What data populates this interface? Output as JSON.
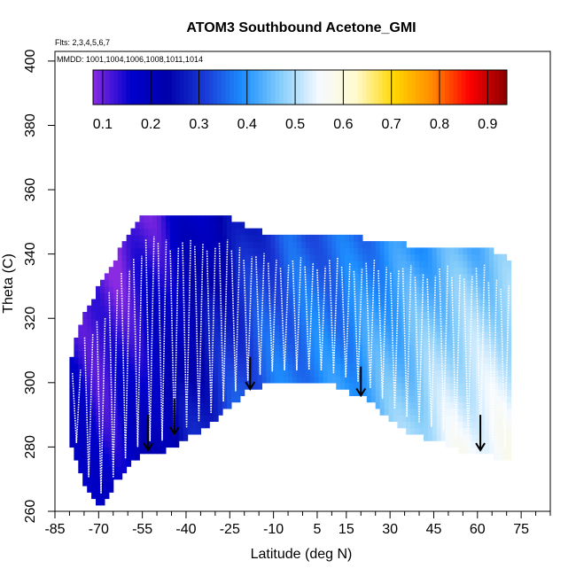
{
  "chart_data": {
    "type": "heatmap",
    "title": "ATOM3 Southbound Acetone_GMI",
    "subtitle_flights": "Flts: 2,3,4,5,6,7",
    "subtitle_dates": "MMDD: 1001,1004,1006,1008,1011,1014",
    "xlabel": "Latitude (deg N)",
    "ylabel": "Theta (C)",
    "xlim": [
      -85,
      85
    ],
    "ylim": [
      260,
      403
    ],
    "x_ticks": [
      -85,
      -70,
      -55,
      -40,
      -25,
      -10,
      5,
      15,
      30,
      45,
      60,
      75
    ],
    "x_tick_labels": [
      "-85",
      "-70",
      "-55",
      "-40",
      "-25",
      "-10",
      "5",
      "15",
      "30",
      "45",
      "60",
      "75"
    ],
    "x_minor_ticks": [
      -80,
      -75,
      -65,
      -60,
      -50,
      -45,
      -35,
      -30,
      -20,
      -15,
      -5,
      0,
      10,
      20,
      25,
      35,
      40,
      50,
      55,
      65,
      70,
      80,
      85
    ],
    "y_ticks": [
      260,
      280,
      300,
      320,
      340,
      360,
      380,
      400
    ],
    "y_tick_labels": [
      "260",
      "280",
      "300",
      "320",
      "340",
      "360",
      "380",
      "400"
    ],
    "colorbar": {
      "range": [
        0.08,
        0.94
      ],
      "ticks": [
        0.1,
        0.2,
        0.3,
        0.4,
        0.5,
        0.6,
        0.7,
        0.8,
        0.9
      ],
      "tick_labels": [
        "0.1",
        "0.2",
        "0.3",
        "0.4",
        "0.5",
        "0.6",
        "0.7",
        "0.8",
        "0.9"
      ],
      "colors": [
        "#8A2BE2",
        "#0000CD",
        "#0000AA",
        "#1A3CD8",
        "#1E90FF",
        "#87CEFA",
        "#F5FAFF",
        "#FFFACD",
        "#FFD700",
        "#FF8C00",
        "#FF0000",
        "#8B0000"
      ]
    },
    "field": {
      "lat": [
        -80,
        -75,
        -70,
        -65,
        -60,
        -55,
        -50,
        -45,
        -40,
        -35,
        -30,
        -25,
        -20,
        -15,
        -10,
        -5,
        0,
        5,
        10,
        15,
        20,
        25,
        30,
        35,
        40,
        45,
        50,
        55,
        60,
        65,
        70
      ],
      "theta_top": [
        308,
        322,
        330,
        338,
        346,
        352,
        352,
        351,
        351,
        351,
        351,
        350,
        348,
        346,
        346,
        345,
        345,
        345,
        345,
        345,
        344,
        344,
        344,
        342,
        342,
        342,
        342,
        342,
        342,
        340,
        338
      ],
      "theta_bottom": [
        281,
        268,
        262,
        270,
        276,
        279,
        279,
        281,
        284,
        286,
        290,
        294,
        298,
        300,
        301,
        301,
        301,
        301,
        300,
        298,
        297,
        293,
        289,
        286,
        284,
        283,
        281,
        279,
        279,
        278,
        276
      ],
      "value_low_theta": [
        0.2,
        0.18,
        0.16,
        0.17,
        0.18,
        0.2,
        0.22,
        0.24,
        0.26,
        0.28,
        0.3,
        0.32,
        0.34,
        0.35,
        0.36,
        0.37,
        0.38,
        0.38,
        0.39,
        0.4,
        0.42,
        0.44,
        0.46,
        0.48,
        0.5,
        0.52,
        0.54,
        0.55,
        0.56,
        0.56,
        0.56
      ],
      "value_high_theta": [
        0.14,
        0.12,
        0.1,
        0.09,
        0.1,
        0.11,
        0.12,
        0.15,
        0.18,
        0.2,
        0.22,
        0.24,
        0.27,
        0.3,
        0.32,
        0.34,
        0.34,
        0.35,
        0.35,
        0.36,
        0.37,
        0.38,
        0.39,
        0.4,
        0.41,
        0.42,
        0.43,
        0.44,
        0.44,
        0.45,
        0.46
      ]
    },
    "arrows": [
      {
        "lat": -53,
        "theta_from": 290,
        "theta_to": 279
      },
      {
        "lat": -44,
        "theta_from": 295,
        "theta_to": 284
      },
      {
        "lat": -18,
        "theta_from": 308,
        "theta_to": 298
      },
      {
        "lat": 20,
        "theta_from": 305,
        "theta_to": 296
      },
      {
        "lat": 61,
        "theta_from": 290,
        "theta_to": 279
      }
    ]
  }
}
